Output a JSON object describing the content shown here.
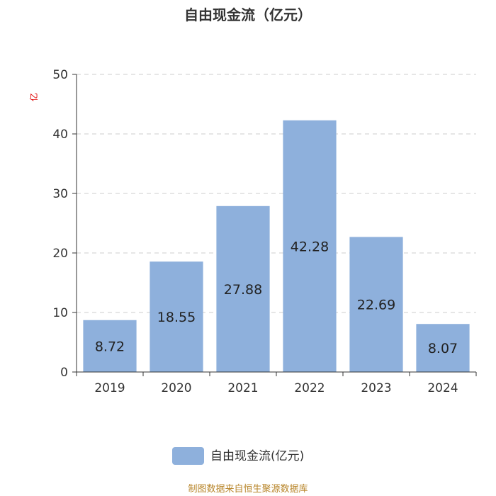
{
  "chart_data": {
    "type": "bar",
    "title": "自由现金流（亿元）",
    "ylabel": "亿",
    "xlabel": "",
    "categories": [
      "2019",
      "2020",
      "2021",
      "2022",
      "2023",
      "2024"
    ],
    "series": [
      {
        "name": "自由现金流(亿元)",
        "values": [
          8.72,
          18.55,
          27.88,
          42.28,
          22.69,
          8.07
        ],
        "color": "#8eb0dc"
      }
    ],
    "ylim": [
      0,
      50
    ],
    "yticks": [
      0,
      10,
      20,
      30,
      40,
      50
    ],
    "grid": true,
    "legend": "bottom-center"
  },
  "footer": {
    "source": "制图数据来自恒生聚源数据库"
  }
}
